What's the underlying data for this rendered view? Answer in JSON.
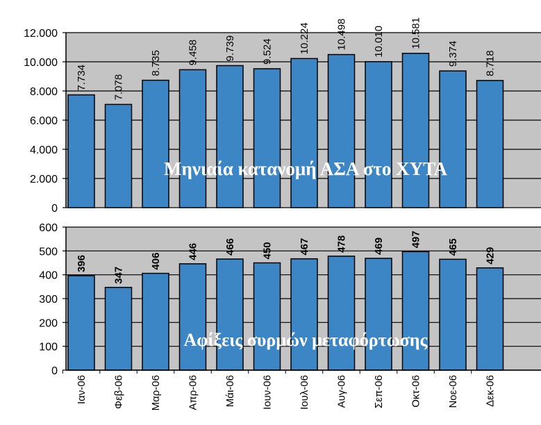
{
  "chart_data": [
    {
      "type": "bar",
      "title": "Μηνιαία κατανομή ΑΣΑ στο ΧΥΤΑ",
      "categories": [
        "Ιαν-06",
        "Φεβ-06",
        "Μαρ-06",
        "Απρ-06",
        "Μάι-06",
        "Ιουν-06",
        "Ιουλ-06",
        "Αυγ-06",
        "Σεπ-06",
        "Οκτ-06",
        "Νοε-06",
        "Δεκ-06"
      ],
      "values": [
        7734,
        7078,
        8735,
        9458,
        9739,
        9524,
        10224,
        10498,
        10010,
        10581,
        9374,
        8718
      ],
      "value_labels": [
        "7.734",
        "7.078",
        "8.735",
        "9.458",
        "9.739",
        "9.524",
        "10.224",
        "10.498",
        "10.010",
        "10.581",
        "9.374",
        "8.718"
      ],
      "ylim": [
        0,
        12000
      ],
      "yticks": [
        0,
        2000,
        4000,
        6000,
        8000,
        10000,
        12000
      ],
      "ytick_labels": [
        "0",
        "2.000",
        "4.000",
        "6.000",
        "8.000",
        "10.000",
        "12.000"
      ],
      "grid": true,
      "legend": "none",
      "bar_color": "#3d86c6",
      "plot_background": "#c4c4c4"
    },
    {
      "type": "bar",
      "title": "Αφίξεις συρμών μεταφόρτωσης",
      "categories": [
        "Ιαν-06",
        "Φεβ-06",
        "Μαρ-06",
        "Απρ-06",
        "Μάι-06",
        "Ιουν-06",
        "Ιουλ-06",
        "Αυγ-06",
        "Σεπ-06",
        "Οκτ-06",
        "Νοε-06",
        "Δεκ-06"
      ],
      "values": [
        396,
        347,
        406,
        446,
        466,
        450,
        467,
        478,
        469,
        497,
        465,
        429
      ],
      "value_labels": [
        "396",
        "347",
        "406",
        "446",
        "466",
        "450",
        "467",
        "478",
        "469",
        "497",
        "465",
        "429"
      ],
      "ylim": [
        0,
        600
      ],
      "yticks": [
        0,
        100,
        200,
        300,
        400,
        500,
        600
      ],
      "ytick_labels": [
        "0",
        "100",
        "200",
        "300",
        "400",
        "500",
        "600"
      ],
      "grid": true,
      "legend": "none",
      "bar_color": "#3d86c6",
      "plot_background": "#c4c4c4"
    }
  ]
}
